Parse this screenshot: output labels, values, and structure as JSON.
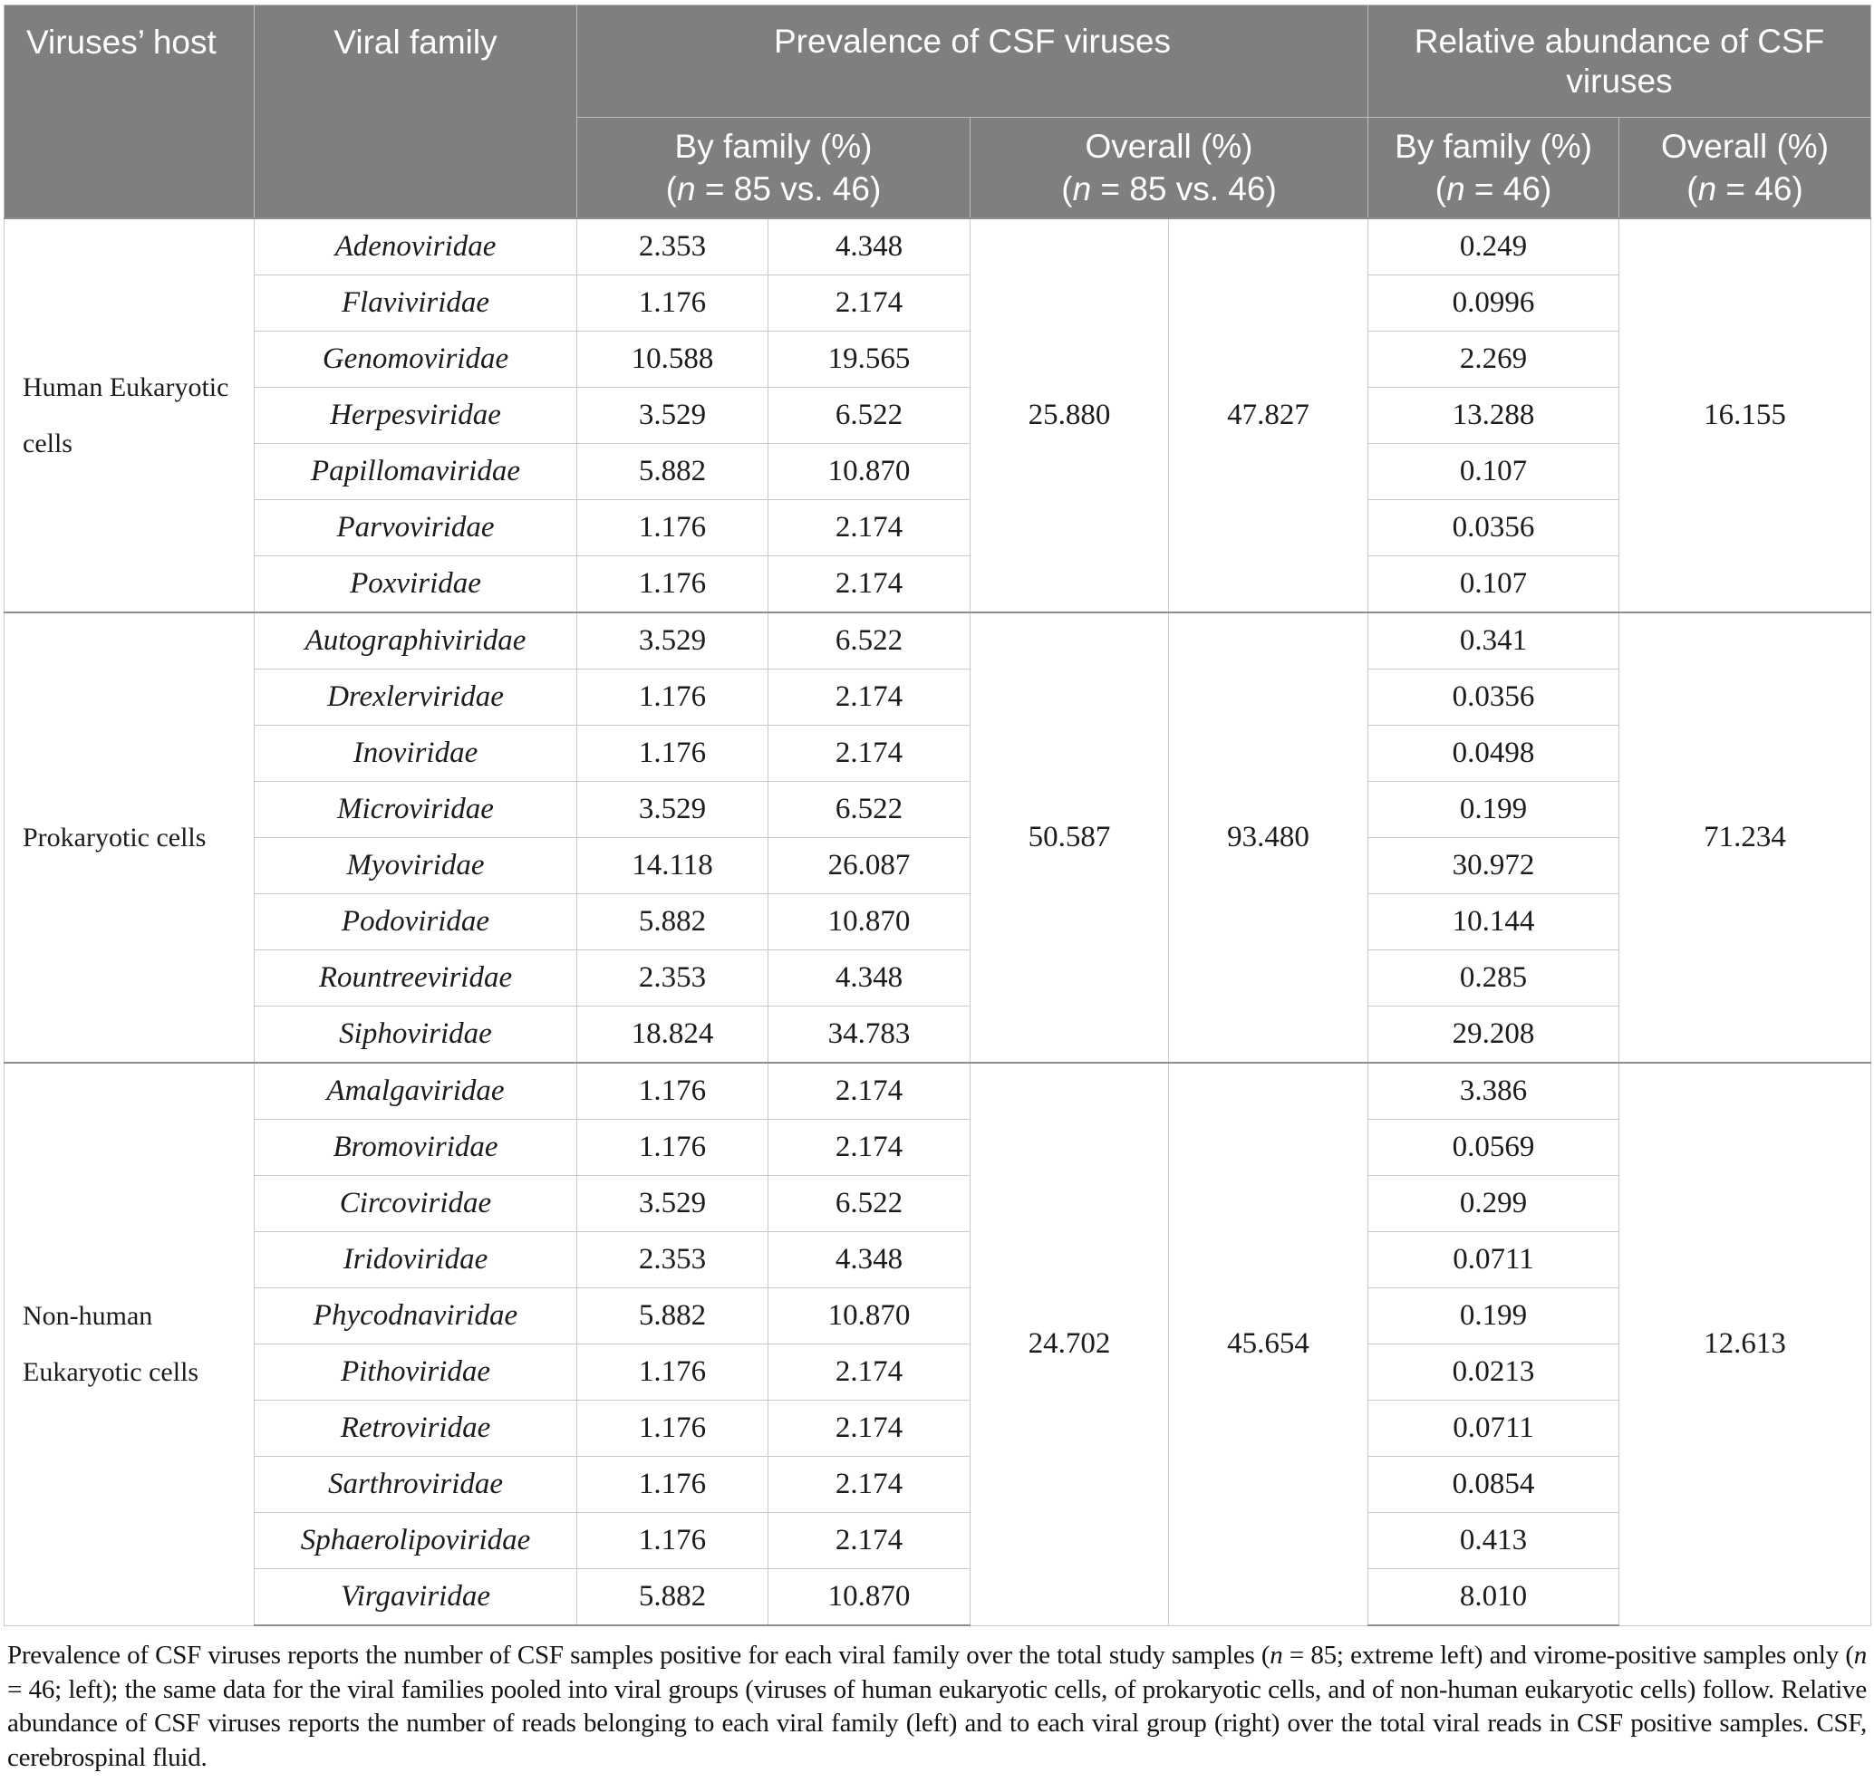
{
  "colors": {
    "header_bg": "#7f7f7f",
    "header_text": "#ffffff",
    "body_text": "#1c1c1c",
    "row_border": "#c9c9c9",
    "group_border": "#8e8e8e"
  },
  "header": {
    "viruses_host": "Viruses’ host",
    "viral_family": "Viral family",
    "prevalence": "Prevalence of CSF viruses",
    "abundance": "Relative abundance of CSF viruses",
    "sub": {
      "prev_by_family": [
        {
          "t": "By family (%)"
        },
        {
          "br": true
        },
        {
          "t": "("
        },
        {
          "t": "n",
          "i": true
        },
        {
          "t": " = 85 vs. 46)"
        }
      ],
      "prev_overall": [
        {
          "t": "Overall (%)"
        },
        {
          "br": true
        },
        {
          "t": "("
        },
        {
          "t": "n",
          "i": true
        },
        {
          "t": " = 85 vs. 46)"
        }
      ],
      "abund_by_family": [
        {
          "t": "By family (%)"
        },
        {
          "br": true
        },
        {
          "t": "("
        },
        {
          "t": "n",
          "i": true
        },
        {
          "t": " = 46)"
        }
      ],
      "abund_overall": [
        {
          "t": "Overall (%)"
        },
        {
          "br": true
        },
        {
          "t": "("
        },
        {
          "t": "n",
          "i": true
        },
        {
          "t": " = 46)"
        }
      ]
    }
  },
  "groups": [
    {
      "host": "Human Eukaryotic cells",
      "overall_prev_n85": "25.880",
      "overall_prev_n46": "47.827",
      "overall_abundance": "16.155",
      "rows": [
        {
          "family": "Adenoviridae",
          "prev_n85": "2.353",
          "prev_n46": "4.348",
          "abundance": "0.249"
        },
        {
          "family": "Flaviviridae",
          "prev_n85": "1.176",
          "prev_n46": "2.174",
          "abundance": "0.0996"
        },
        {
          "family": "Genomoviridae",
          "prev_n85": "10.588",
          "prev_n46": "19.565",
          "abundance": "2.269"
        },
        {
          "family": "Herpesviridae",
          "prev_n85": "3.529",
          "prev_n46": "6.522",
          "abundance": "13.288"
        },
        {
          "family": "Papillomaviridae",
          "prev_n85": "5.882",
          "prev_n46": "10.870",
          "abundance": "0.107"
        },
        {
          "family": "Parvoviridae",
          "prev_n85": "1.176",
          "prev_n46": "2.174",
          "abundance": "0.0356"
        },
        {
          "family": "Poxviridae",
          "prev_n85": "1.176",
          "prev_n46": "2.174",
          "abundance": "0.107"
        }
      ]
    },
    {
      "host": "Prokaryotic cells",
      "overall_prev_n85": "50.587",
      "overall_prev_n46": "93.480",
      "overall_abundance": "71.234",
      "rows": [
        {
          "family": "Autographiviridae",
          "prev_n85": "3.529",
          "prev_n46": "6.522",
          "abundance": "0.341"
        },
        {
          "family": "Drexlerviridae",
          "prev_n85": "1.176",
          "prev_n46": "2.174",
          "abundance": "0.0356"
        },
        {
          "family": "Inoviridae",
          "prev_n85": "1.176",
          "prev_n46": "2.174",
          "abundance": "0.0498"
        },
        {
          "family": "Microviridae",
          "prev_n85": "3.529",
          "prev_n46": "6.522",
          "abundance": "0.199"
        },
        {
          "family": "Myoviridae",
          "prev_n85": "14.118",
          "prev_n46": "26.087",
          "abundance": "30.972"
        },
        {
          "family": "Podoviridae",
          "prev_n85": "5.882",
          "prev_n46": "10.870",
          "abundance": "10.144"
        },
        {
          "family": "Rountreeviridae",
          "prev_n85": "2.353",
          "prev_n46": "4.348",
          "abundance": "0.285"
        },
        {
          "family": "Siphoviridae",
          "prev_n85": "18.824",
          "prev_n46": "34.783",
          "abundance": "29.208"
        }
      ]
    },
    {
      "host": "Non-human Eukaryotic cells",
      "overall_prev_n85": "24.702",
      "overall_prev_n46": "45.654",
      "overall_abundance": "12.613",
      "rows": [
        {
          "family": "Amalgaviridae",
          "prev_n85": "1.176",
          "prev_n46": "2.174",
          "abundance": "3.386"
        },
        {
          "family": "Bromoviridae",
          "prev_n85": "1.176",
          "prev_n46": "2.174",
          "abundance": "0.0569"
        },
        {
          "family": "Circoviridae",
          "prev_n85": "3.529",
          "prev_n46": "6.522",
          "abundance": "0.299"
        },
        {
          "family": "Iridoviridae",
          "prev_n85": "2.353",
          "prev_n46": "4.348",
          "abundance": "0.0711"
        },
        {
          "family": "Phycodnaviridae",
          "prev_n85": "5.882",
          "prev_n46": "10.870",
          "abundance": "0.199"
        },
        {
          "family": "Pithoviridae",
          "prev_n85": "1.176",
          "prev_n46": "2.174",
          "abundance": "0.0213"
        },
        {
          "family": "Retroviridae",
          "prev_n85": "1.176",
          "prev_n46": "2.174",
          "abundance": "0.0711"
        },
        {
          "family": "Sarthroviridae",
          "prev_n85": "1.176",
          "prev_n46": "2.174",
          "abundance": "0.0854"
        },
        {
          "family": "Sphaerolipoviridae",
          "prev_n85": "1.176",
          "prev_n46": "2.174",
          "abundance": "0.413"
        },
        {
          "family": "Virgaviridae",
          "prev_n85": "5.882",
          "prev_n46": "10.870",
          "abundance": "8.010"
        }
      ]
    }
  ],
  "footnote": {
    "segments": [
      {
        "t": "Prevalence of CSF viruses reports the number of CSF samples positive for each viral family over the total study samples ("
      },
      {
        "t": "n",
        "i": true
      },
      {
        "t": " = 85; extreme left) and virome-positive samples only ("
      },
      {
        "t": "n",
        "i": true
      },
      {
        "t": " = 46; left); the same data for the viral families pooled into viral groups (viruses of human eukaryotic cells, of prokaryotic cells, and of non-human eukaryotic cells) follow. Relative abundance of CSF viruses reports the number of reads belonging to each viral family (left) and to each viral group (right) over the total viral reads in CSF positive samples. CSF, cerebrospinal fluid."
      }
    ]
  }
}
